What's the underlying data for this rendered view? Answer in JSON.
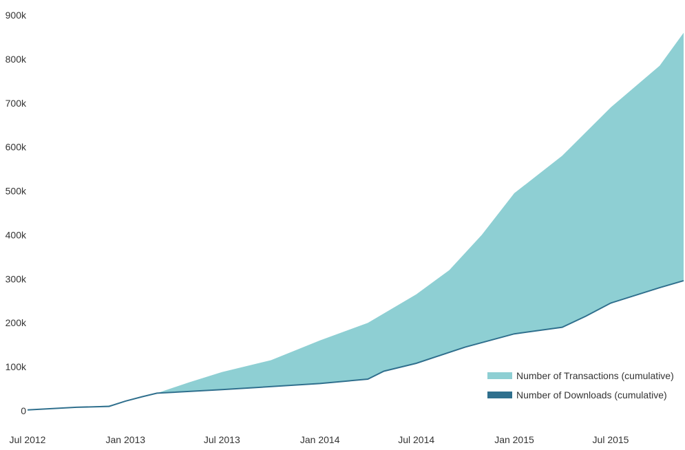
{
  "chart_data": {
    "type": "area",
    "x_axis": {
      "ticks": [
        "2012-07-01",
        "2013-01-01",
        "2013-07-01",
        "2014-01-01",
        "2014-07-01",
        "2015-01-01",
        "2015-07-01"
      ],
      "labels": [
        "Jul 2012",
        "Jan 2013",
        "Jul 2013",
        "Jan 2014",
        "Jul 2014",
        "Jan 2015",
        "Jul 2015"
      ],
      "range": [
        "2012-07-01",
        "2015-11-15"
      ]
    },
    "y_axis": {
      "ticks": [
        0,
        100000,
        200000,
        300000,
        400000,
        500000,
        600000,
        700000,
        800000,
        900000
      ],
      "labels": [
        "0",
        "100k",
        "200k",
        "300k",
        "400k",
        "500k",
        "600k",
        "700k",
        "800k",
        "900k"
      ],
      "range": [
        0,
        900000
      ]
    },
    "grid": false,
    "legend_position": "bottom-right",
    "series": [
      {
        "name": "Number of Transactions (cumulative)",
        "color": "#8ecfd3",
        "points": [
          [
            "2012-07-01",
            2000
          ],
          [
            "2012-10-01",
            8000
          ],
          [
            "2012-12-01",
            12000
          ],
          [
            "2013-01-01",
            20000
          ],
          [
            "2013-02-01",
            30000
          ],
          [
            "2013-03-01",
            40000
          ],
          [
            "2013-05-01",
            65000
          ],
          [
            "2013-07-01",
            88000
          ],
          [
            "2013-10-01",
            115000
          ],
          [
            "2014-01-01",
            160000
          ],
          [
            "2014-04-01",
            200000
          ],
          [
            "2014-07-01",
            265000
          ],
          [
            "2014-09-01",
            320000
          ],
          [
            "2014-11-01",
            400000
          ],
          [
            "2015-01-01",
            495000
          ],
          [
            "2015-04-01",
            580000
          ],
          [
            "2015-07-01",
            690000
          ],
          [
            "2015-10-01",
            785000
          ],
          [
            "2015-11-15",
            860000
          ]
        ]
      },
      {
        "name": "Number of Downloads (cumulative)",
        "color": "#2f6f8d",
        "points": [
          [
            "2012-07-01",
            2000
          ],
          [
            "2012-10-01",
            8000
          ],
          [
            "2012-12-01",
            10000
          ],
          [
            "2013-01-01",
            22000
          ],
          [
            "2013-02-01",
            32000
          ],
          [
            "2013-03-01",
            40000
          ],
          [
            "2013-07-01",
            48000
          ],
          [
            "2014-01-01",
            62000
          ],
          [
            "2014-04-01",
            72000
          ],
          [
            "2014-05-01",
            90000
          ],
          [
            "2014-07-01",
            108000
          ],
          [
            "2014-10-01",
            145000
          ],
          [
            "2015-01-01",
            175000
          ],
          [
            "2015-04-01",
            190000
          ],
          [
            "2015-05-15",
            215000
          ],
          [
            "2015-07-01",
            245000
          ],
          [
            "2015-10-01",
            280000
          ],
          [
            "2015-11-15",
            296000
          ]
        ]
      }
    ]
  }
}
